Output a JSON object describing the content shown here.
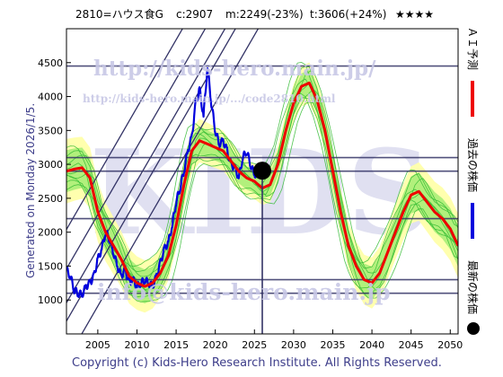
{
  "header": {
    "code_name": "2810=ハウス食G",
    "close": "c:2907",
    "min": "m:2249(-23%)",
    "target": "t:3606(+24%)",
    "stars": "★★★★"
  },
  "side_left": "Generated on Monday 2026/1/5.",
  "legend": {
    "ai_forecast": "ＡＩ予測",
    "past_price": "過去の株価",
    "latest_price": "最新の株価"
  },
  "watermarks": {
    "url_main": "http://kids-hero.main.jp/",
    "url_sub": "http://kids-hero.main.jp/.../code2810.html",
    "email": "info@kids-hero.main.jp",
    "big": "KIDS"
  },
  "footer": "Copyright (c) Kids-Hero Research Institute. All Rights Reserved.",
  "colors": {
    "ai_forecast": "#ee0000",
    "past_price": "#0000dd",
    "latest_marker": "#000000",
    "band_outer": "#ffffaa",
    "band_inner": "#aaee77",
    "sim_lines": "#33bb33",
    "channel_lines": "#333366",
    "watermark": "#c8c8e6"
  },
  "chart_data": {
    "type": "line",
    "xlim": [
      2001,
      2051
    ],
    "ylim": [
      500,
      5000
    ],
    "x_ticks": [
      2005,
      2010,
      2015,
      2020,
      2025,
      2030,
      2035,
      2040,
      2045,
      2050
    ],
    "y_ticks": [
      1000,
      1500,
      2000,
      2500,
      3000,
      3500,
      4000,
      4500
    ],
    "horizontal_levels": [
      1100,
      1300,
      2200,
      2900,
      3100,
      4450
    ],
    "vertical_marker_x": 2026,
    "latest_point": {
      "x": 2026.0,
      "y": 2907
    },
    "trend_channels": [
      {
        "x": [
          2001,
          2051
        ],
        "y": [
          110,
          10100
        ]
      },
      {
        "x": [
          2001,
          2051
        ],
        "y": [
          690,
          10680
        ]
      },
      {
        "x": [
          2001,
          2051
        ],
        "y": [
          960,
          10940
        ]
      },
      {
        "x": [
          2001,
          2051
        ],
        "y": [
          1460,
          11450
        ]
      },
      {
        "x": [
          2001,
          2051
        ],
        "y": [
          2040,
          12030
        ]
      }
    ],
    "series": [
      {
        "name": "過去の株価",
        "x": [
          2001.0,
          2001.5,
          2002.0,
          2002.5,
          2003.0,
          2003.5,
          2004.0,
          2004.5,
          2005.0,
          2005.5,
          2006.0,
          2006.5,
          2007.0,
          2007.5,
          2008.0,
          2008.5,
          2009.0,
          2009.5,
          2010.0,
          2010.5,
          2011.0,
          2011.5,
          2012.0,
          2012.5,
          2013.0,
          2013.5,
          2014.0,
          2014.5,
          2015.0,
          2015.5,
          2016.0,
          2016.5,
          2017.0,
          2017.5,
          2018.0,
          2018.5,
          2019.0,
          2019.5,
          2020.0,
          2020.5,
          2021.0,
          2021.5,
          2022.0,
          2022.5,
          2023.0,
          2023.5,
          2024.0,
          2024.5,
          2025.0,
          2025.5,
          2026.0
        ],
        "y": [
          1450,
          1350,
          1150,
          1100,
          1080,
          1200,
          1250,
          1350,
          1600,
          1750,
          2000,
          1900,
          1700,
          1500,
          1350,
          1450,
          1250,
          1300,
          1200,
          1250,
          1300,
          1250,
          1200,
          1350,
          1550,
          1750,
          1850,
          2100,
          2450,
          2650,
          2900,
          3200,
          3400,
          3900,
          4100,
          3700,
          4450,
          3900,
          3500,
          3300,
          3350,
          3200,
          3000,
          2950,
          2800,
          3100,
          3200,
          3000,
          2850,
          2880,
          2907
        ]
      },
      {
        "name": "ＡＩ予測",
        "x": [
          2001.0,
          2002.0,
          2003.0,
          2004.0,
          2005.0,
          2006.0,
          2007.0,
          2008.0,
          2009.0,
          2010.0,
          2011.0,
          2012.0,
          2013.0,
          2014.0,
          2015.0,
          2016.0,
          2017.0,
          2018.0,
          2019.0,
          2020.0,
          2021.0,
          2022.0,
          2023.0,
          2024.0,
          2025.0,
          2026.0,
          2027.0,
          2028.0,
          2029.0,
          2030.0,
          2031.0,
          2032.0,
          2033.0,
          2034.0,
          2035.0,
          2036.0,
          2037.0,
          2038.0,
          2039.0,
          2040.0,
          2041.0,
          2042.0,
          2043.0,
          2044.0,
          2045.0,
          2046.0,
          2047.0,
          2048.0,
          2049.0,
          2050.0,
          2051.0
        ],
        "y": [
          2900,
          2930,
          2950,
          2800,
          2300,
          2000,
          1800,
          1600,
          1350,
          1250,
          1200,
          1250,
          1400,
          1650,
          2100,
          2700,
          3200,
          3350,
          3300,
          3250,
          3200,
          3050,
          2900,
          2800,
          2750,
          2650,
          2700,
          3000,
          3500,
          3900,
          4150,
          4200,
          3950,
          3500,
          2900,
          2300,
          1800,
          1500,
          1300,
          1250,
          1400,
          1700,
          2000,
          2300,
          2550,
          2600,
          2450,
          2300,
          2200,
          2050,
          1800
        ]
      }
    ]
  }
}
